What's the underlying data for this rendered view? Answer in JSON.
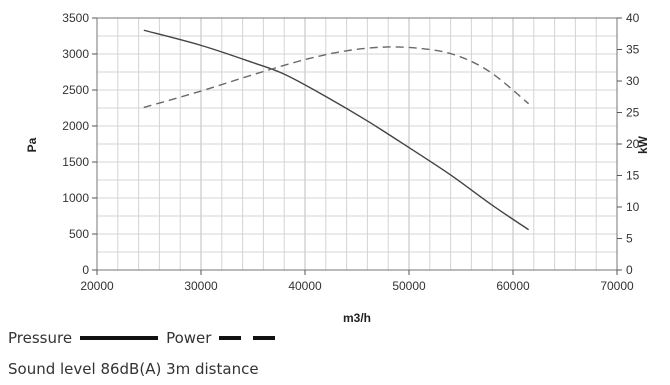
{
  "chart_data": {
    "type": "line",
    "title": "",
    "xlabel": "m3/h",
    "ylabel": "Pa",
    "y2label": "kW",
    "xlim": [
      20000,
      70000
    ],
    "ylim": [
      0,
      3500
    ],
    "y2lim": [
      0,
      40
    ],
    "x_ticks": [
      20000,
      30000,
      40000,
      50000,
      60000,
      70000
    ],
    "y_ticks": [
      0,
      500,
      1000,
      1500,
      2000,
      2500,
      3000,
      3500
    ],
    "y2_ticks": [
      0,
      5,
      10,
      15,
      20,
      25,
      30,
      35,
      40
    ],
    "grid": true,
    "series": [
      {
        "name": "Pressure",
        "axis": "left",
        "style": "solid",
        "x": [
          24500,
          30000,
          35000,
          38000,
          42000,
          46000,
          50000,
          54000,
          58000,
          61500
        ],
        "values": [
          3330,
          3120,
          2880,
          2720,
          2410,
          2070,
          1700,
          1320,
          900,
          560
        ]
      },
      {
        "name": "Power",
        "axis": "right",
        "style": "dashed",
        "x": [
          24500,
          30000,
          35000,
          40000,
          44000,
          48000,
          52000,
          55000,
          58000,
          61500
        ],
        "values": [
          25.8,
          28.4,
          31.0,
          33.4,
          34.8,
          35.4,
          35.0,
          33.8,
          31.2,
          26.4
        ]
      }
    ]
  },
  "legend": {
    "pressure_label": "Pressure",
    "power_label": "Power"
  },
  "footer": {
    "sound_text": "Sound level 86dB(A) 3m distance"
  }
}
